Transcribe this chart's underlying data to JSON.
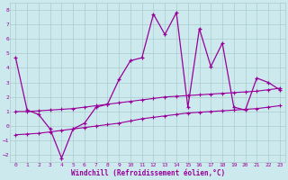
{
  "xlabel": "Windchill (Refroidissement éolien,°C)",
  "background_color": "#cce9ed",
  "grid_color": "#aacccc",
  "line_color": "#990099",
  "xlim": [
    -0.5,
    23.5
  ],
  "ylim": [
    -2.5,
    8.5
  ],
  "yticks": [
    -2,
    -1,
    0,
    1,
    2,
    3,
    4,
    5,
    6,
    7,
    8
  ],
  "xticks": [
    0,
    1,
    2,
    3,
    4,
    5,
    6,
    7,
    8,
    9,
    10,
    11,
    12,
    13,
    14,
    15,
    16,
    17,
    18,
    19,
    20,
    21,
    22,
    23
  ],
  "series1_x": [
    0,
    1,
    2,
    3,
    4,
    5,
    6,
    7,
    8,
    9,
    10,
    11,
    12,
    13,
    14,
    15,
    16,
    17,
    18,
    19,
    20,
    21,
    22,
    23
  ],
  "series1_y": [
    4.7,
    1.1,
    0.8,
    -0.2,
    -2.2,
    -0.2,
    0.2,
    1.3,
    1.5,
    3.2,
    4.5,
    4.7,
    7.7,
    6.3,
    7.8,
    1.3,
    6.7,
    4.1,
    5.7,
    1.3,
    1.1,
    3.3,
    3.0,
    2.5
  ],
  "series2_x": [
    0,
    1,
    2,
    3,
    4,
    5,
    6,
    7,
    8,
    9,
    10,
    11,
    12,
    13,
    14,
    15,
    16,
    17,
    18,
    19,
    20,
    21,
    22,
    23
  ],
  "series2_y": [
    1.0,
    1.0,
    1.05,
    1.1,
    1.15,
    1.2,
    1.3,
    1.4,
    1.5,
    1.6,
    1.7,
    1.8,
    1.9,
    2.0,
    2.05,
    2.1,
    2.15,
    2.2,
    2.25,
    2.3,
    2.35,
    2.4,
    2.5,
    2.6
  ],
  "series3_x": [
    0,
    1,
    2,
    3,
    4,
    5,
    6,
    7,
    8,
    9,
    10,
    11,
    12,
    13,
    14,
    15,
    16,
    17,
    18,
    19,
    20,
    21,
    22,
    23
  ],
  "series3_y": [
    -0.6,
    -0.55,
    -0.5,
    -0.4,
    -0.3,
    -0.2,
    -0.1,
    0.0,
    0.1,
    0.2,
    0.35,
    0.5,
    0.6,
    0.7,
    0.8,
    0.9,
    0.95,
    1.0,
    1.05,
    1.1,
    1.15,
    1.2,
    1.3,
    1.4
  ]
}
